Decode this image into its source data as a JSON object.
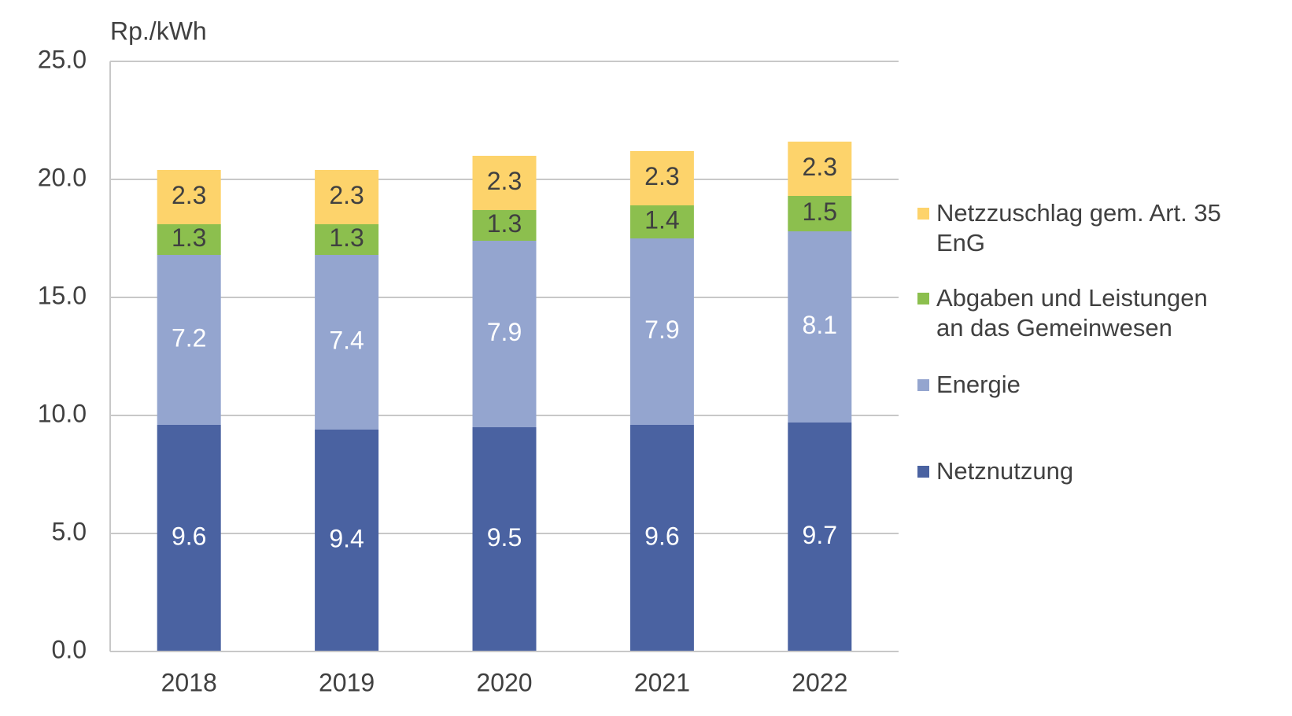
{
  "chart_data": {
    "type": "stacked_bar",
    "y_label": "Rp./kWh",
    "categories": [
      "2018",
      "2019",
      "2020",
      "2021",
      "2022"
    ],
    "series": [
      {
        "name": "Netznutzung",
        "color": "#4a62a1",
        "values": [
          9.6,
          9.4,
          9.5,
          9.6,
          9.7
        ]
      },
      {
        "name": "Energie",
        "color": "#94a5cf",
        "values": [
          7.2,
          7.4,
          7.9,
          7.9,
          8.1
        ]
      },
      {
        "name": "Abgaben und Leistungen an das Gemeinwesen",
        "color": "#8cbf4e",
        "values": [
          1.3,
          1.3,
          1.3,
          1.4,
          1.5
        ]
      },
      {
        "name": "Netzzuschlag gem. Art. 35 EnG",
        "color": "#fdd36b",
        "values": [
          2.3,
          2.3,
          2.3,
          2.3,
          2.3
        ]
      }
    ],
    "ylim": [
      0,
      25
    ],
    "yticks": [
      {
        "value": 0,
        "label": "0.0"
      },
      {
        "value": 5,
        "label": "5.0"
      },
      {
        "value": 10,
        "label": "10.0"
      },
      {
        "value": 15,
        "label": "15.0"
      },
      {
        "value": 20,
        "label": "20.0"
      },
      {
        "value": 25,
        "label": "25.0"
      }
    ],
    "grid": true,
    "legend": "right"
  }
}
